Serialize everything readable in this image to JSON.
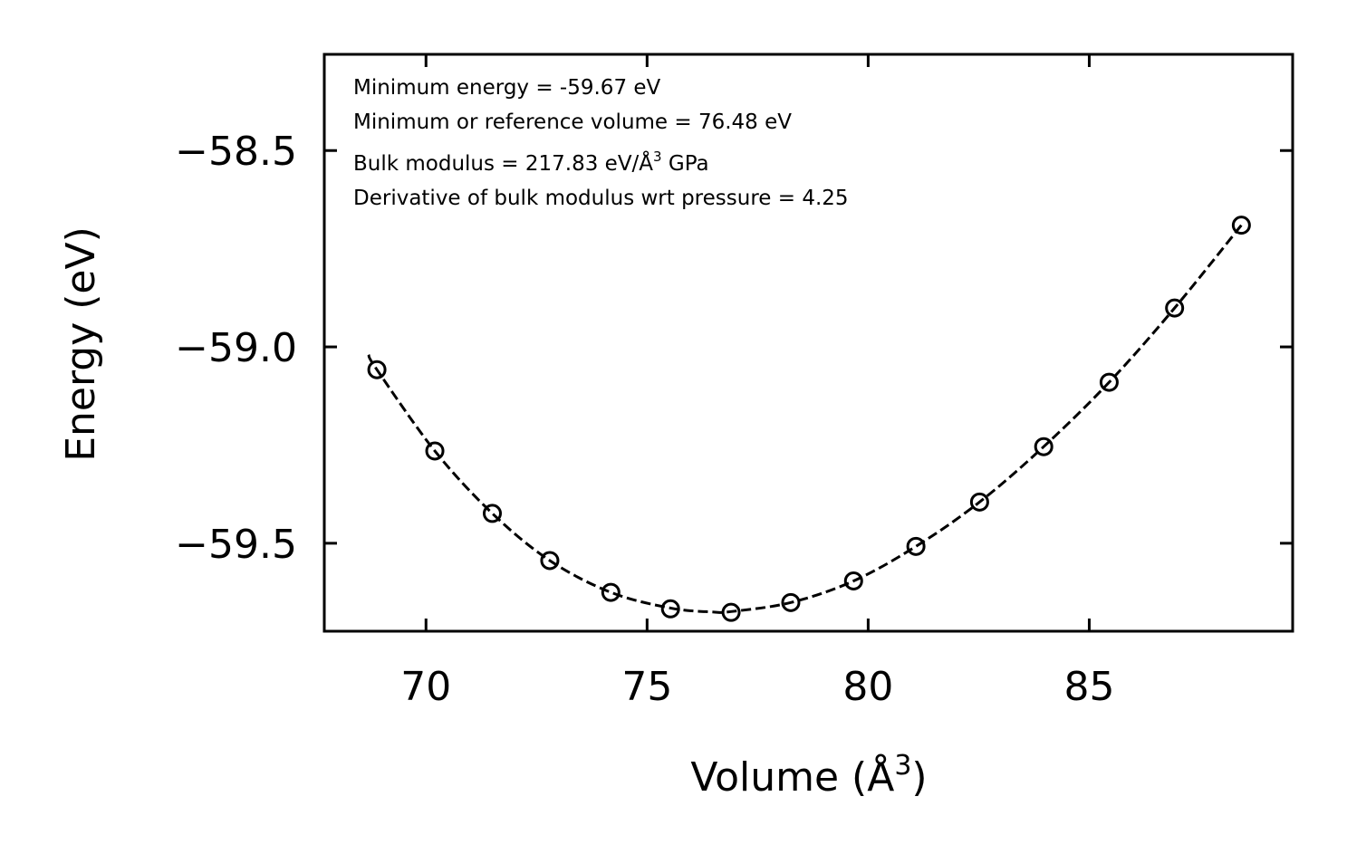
{
  "chart_data": {
    "type": "scatter",
    "title": "",
    "xlabel": "Volume (Å",
    "xlabel_sup": "3",
    "xlabel_end": ")",
    "ylabel": "Energy (eV)",
    "xlim": [
      67.7,
      89.6
    ],
    "ylim": [
      -59.724,
      -58.255
    ],
    "xticks": [
      70,
      75,
      80,
      85
    ],
    "xtick_labels": [
      "70",
      "75",
      "80",
      "85"
    ],
    "yticks": [
      -58.5,
      -59.0,
      -59.5
    ],
    "ytick_labels": [
      "−58.5",
      "−59.0",
      "−59.5"
    ],
    "grid": false,
    "series": [
      {
        "name": "data",
        "style": "open-circle",
        "x": [
          68.89,
          70.2,
          71.5,
          72.8,
          74.18,
          75.53,
          76.9,
          78.25,
          79.67,
          81.08,
          82.52,
          83.97,
          85.45,
          86.93,
          88.44
        ],
        "y": [
          -59.058,
          -59.265,
          -59.424,
          -59.544,
          -59.625,
          -59.667,
          -59.676,
          -59.651,
          -59.596,
          -59.508,
          -59.395,
          -59.254,
          -59.09,
          -58.901,
          -58.69
        ]
      },
      {
        "name": "fit",
        "style": "dashed-line",
        "x": [
          68.7,
          68.89,
          70.2,
          71.5,
          72.8,
          74.18,
          75.53,
          76.48,
          76.9,
          78.25,
          79.67,
          81.08,
          82.52,
          83.97,
          85.45,
          86.93,
          88.44
        ],
        "y": [
          -59.02,
          -59.058,
          -59.265,
          -59.424,
          -59.544,
          -59.625,
          -59.665,
          -59.675,
          -59.674,
          -59.651,
          -59.596,
          -59.508,
          -59.395,
          -59.254,
          -59.09,
          -58.901,
          -58.69
        ]
      }
    ],
    "annotations": [
      "Minimum energy = -59.67 eV",
      "Minimum or reference volume = 76.48 eV",
      "Bulk modulus = 217.83 eV/Å",
      "Derivative of bulk modulus wrt pressure = 4.25"
    ],
    "annotation_bulk_sup": "3",
    "annotation_bulk_end": " GPa"
  }
}
